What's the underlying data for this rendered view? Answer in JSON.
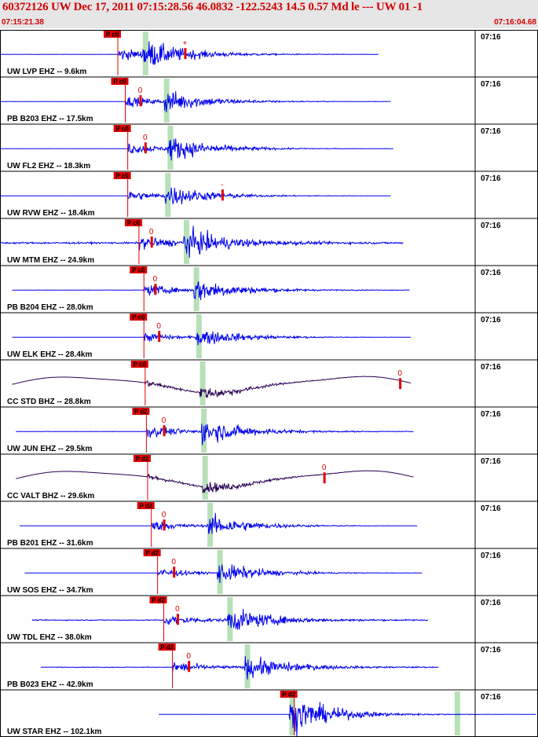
{
  "header": {
    "title": "60372126 UW Dec 17, 2011 07:15:28.56   46.0832 -122.5243 14.5 0.57 Md le --- UW 01   -1",
    "start_time": "07:15:21.38",
    "end_time": "07:16:04.68"
  },
  "colors": {
    "header_bg": "#e6e6e6",
    "header_text": "#d40000",
    "trace_short": "#0000ee",
    "trace_broadband": "#2b0055",
    "pick": "#e00000",
    "window": "#b8e0b8"
  },
  "chart_data": {
    "type": "line",
    "title": "60372126 UW Dec 17, 2011 07:15:28.56",
    "x_unit": "seconds after 07:15:21.38",
    "xlim": [
      0,
      43.3
    ],
    "tick_label": "07:16",
    "series": [
      {
        "label": "UW LVP EHZ -- 9.6km",
        "pick_label": "P c0",
        "pick_x": 10.8,
        "polarity": "+",
        "polarity_x": 16.2,
        "s_x": 13.0,
        "start_x": 0.0,
        "end_x": 31.8,
        "noise": 0.1,
        "amp": 1.0,
        "style": "short"
      },
      {
        "label": "PB B203 EHZ -- 17.5km",
        "pick_label": "P c0",
        "pick_x": 11.4,
        "polarity": "0",
        "polarity_x": 12.6,
        "s_x": 14.7,
        "start_x": 0.9,
        "end_x": 32.8,
        "noise": 0.07,
        "amp": 0.85,
        "style": "short"
      },
      {
        "label": "UW FL2 EHZ -- 18.3km",
        "pick_label": "P c0",
        "pick_x": 11.6,
        "polarity": "0",
        "polarity_x": 13.0,
        "s_x": 15.0,
        "start_x": 0.9,
        "end_x": 33.0,
        "noise": 0.06,
        "amp": 0.9,
        "style": "short"
      },
      {
        "label": "UW RVW EHZ -- 18.4km",
        "pick_label": "P c0",
        "pick_x": 11.6,
        "polarity": "-",
        "polarity_x": 19.2,
        "s_x": 14.8,
        "start_x": 0.9,
        "end_x": 32.8,
        "noise": 0.05,
        "amp": 0.8,
        "style": "short"
      },
      {
        "label": "UW MTM EHZ -- 24.9km",
        "pick_label": "P c0",
        "pick_x": 12.5,
        "polarity": "0",
        "polarity_x": 13.5,
        "s_x": 16.3,
        "start_x": 0.9,
        "end_x": 33.8,
        "noise": 0.55,
        "amp": 1.0,
        "style": "short"
      },
      {
        "label": "PB B204 EHZ -- 28.0km",
        "pick_label": "P c0",
        "pick_x": 12.9,
        "polarity": "0",
        "polarity_x": 13.8,
        "s_x": 17.1,
        "start_x": 2.3,
        "end_x": 34.3,
        "noise": 0.12,
        "amp": 0.9,
        "style": "short"
      },
      {
        "label": "UW ELK EHZ -- 28.4km",
        "pick_label": "P c0",
        "pick_x": 12.9,
        "polarity": "0",
        "polarity_x": 14.1,
        "s_x": 17.3,
        "start_x": 2.3,
        "end_x": 34.4,
        "noise": 0.04,
        "amp": 0.7,
        "style": "short"
      },
      {
        "label": "CC STD BHZ -- 28.8km",
        "pick_label": "P c0",
        "pick_x": 13.0,
        "polarity": "0",
        "polarity_x": 33.5,
        "s_x": 17.6,
        "start_x": 2.3,
        "end_x": 34.4,
        "noise": 0.03,
        "amp": 0.8,
        "style": "broadband"
      },
      {
        "label": "UW JUN EHZ -- 29.5km",
        "pick_label": "P d2",
        "pick_x": 13.1,
        "polarity": "0",
        "polarity_x": 14.5,
        "s_x": 17.7,
        "start_x": 2.6,
        "end_x": 34.6,
        "noise": 0.15,
        "amp": 0.95,
        "style": "short"
      },
      {
        "label": "CC VALT BHZ -- 29.6km",
        "pick_label": "P d2",
        "pick_x": 13.2,
        "polarity": "0",
        "polarity_x": 27.4,
        "s_x": 17.8,
        "start_x": 2.6,
        "end_x": 34.6,
        "noise": 0.04,
        "amp": 0.75,
        "style": "broadband"
      },
      {
        "label": "PB B201 EHZ -- 31.6km",
        "pick_label": "P d2",
        "pick_x": 13.5,
        "polarity": "0",
        "polarity_x": 14.5,
        "s_x": 18.2,
        "start_x": 2.9,
        "end_x": 34.9,
        "noise": 0.02,
        "amp": 0.85,
        "style": "short"
      },
      {
        "label": "UW SOS EHZ -- 34.7km",
        "pick_label": "P d2",
        "pick_x": 14.0,
        "polarity": "0",
        "polarity_x": 15.3,
        "s_x": 19.0,
        "start_x": 3.3,
        "end_x": 35.3,
        "noise": 0.02,
        "amp": 0.8,
        "style": "short"
      },
      {
        "label": "UW TDL EHZ -- 38.0km",
        "pick_label": "P d2",
        "pick_x": 14.5,
        "polarity": "0",
        "polarity_x": 15.6,
        "s_x": 19.8,
        "start_x": 3.9,
        "end_x": 35.8,
        "noise": 0.28,
        "amp": 0.95,
        "style": "short"
      },
      {
        "label": "PB B023 EHZ -- 42.9km",
        "pick_label": "P d2",
        "pick_x": 15.2,
        "polarity": "0",
        "polarity_x": 16.5,
        "s_x": 21.2,
        "start_x": 4.6,
        "end_x": 36.6,
        "noise": 0.22,
        "amp": 0.9,
        "style": "short"
      },
      {
        "label": "UW STAR EHZ -- 102.1km",
        "pick_label": "P d2",
        "pick_x": 25.0,
        "polarity": "",
        "polarity_x": 0,
        "s_x": 24.8,
        "s2_x": 38.1,
        "start_x": 14.1,
        "end_x": 46.0,
        "noise": 0.06,
        "amp": 1.0,
        "style": "short"
      }
    ]
  }
}
